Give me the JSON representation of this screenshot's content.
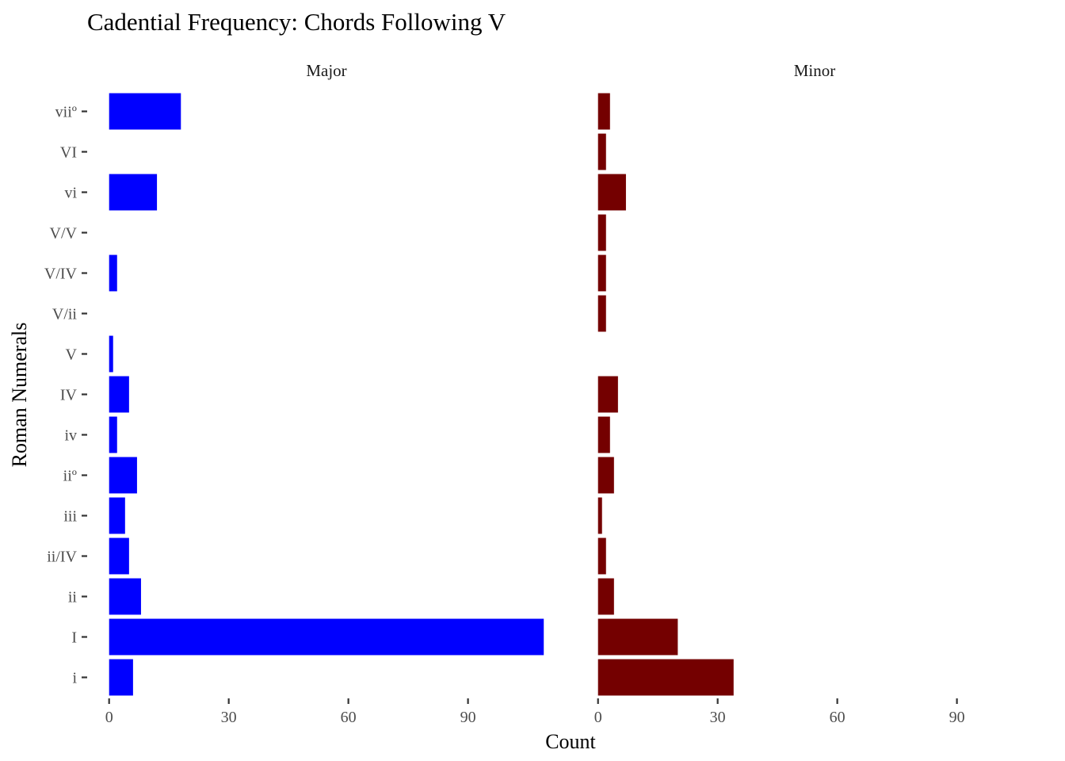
{
  "chart_data": {
    "type": "bar",
    "orientation": "horizontal",
    "title": "Cadential Frequency: Chords Following V",
    "xlabel": "Count",
    "ylabel": "Roman Numerals",
    "categories": [
      "i",
      "I",
      "ii",
      "ii/IV",
      "iii",
      "iiº",
      "iv",
      "IV",
      "V",
      "V/ii",
      "V/IV",
      "V/V",
      "vi",
      "VI",
      "viiº"
    ],
    "xlim": [
      0,
      112
    ],
    "xticks": [
      0,
      30,
      60,
      90
    ],
    "grid": false,
    "legend": "none",
    "facets": [
      {
        "name": "Major",
        "color": "#0000FF",
        "values": [
          6,
          109,
          8,
          5,
          4,
          7,
          2,
          5,
          1,
          0,
          2,
          0,
          12,
          0,
          18
        ]
      },
      {
        "name": "Minor",
        "color": "#740000",
        "values": [
          34,
          20,
          4,
          2,
          1,
          4,
          3,
          5,
          0,
          2,
          2,
          2,
          7,
          2,
          3
        ]
      }
    ]
  }
}
